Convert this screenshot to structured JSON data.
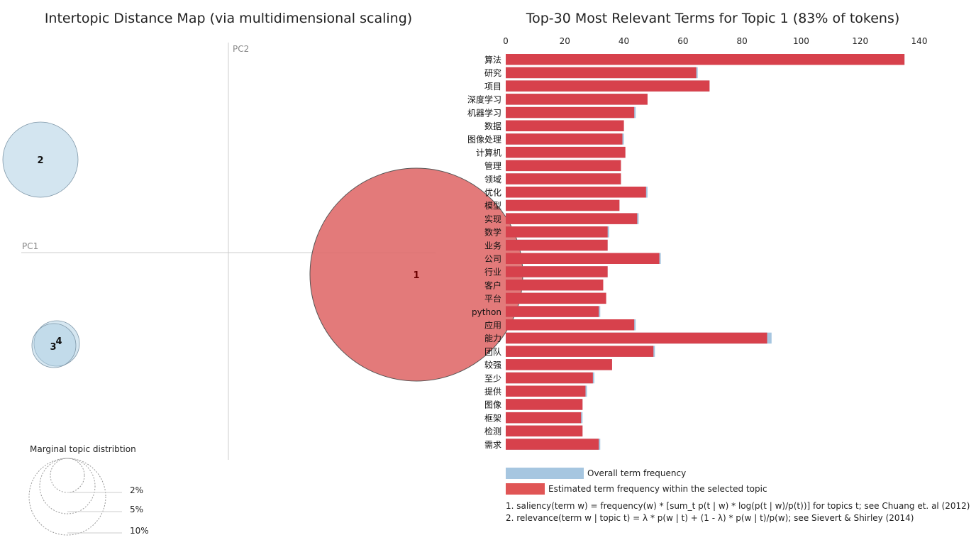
{
  "left_panel": {
    "title": "Intertopic Distance Map (via multidimensional scaling)",
    "pc1_label": "PC1",
    "pc2_label": "PC2",
    "marginal_title": "Marginal topic distribtion",
    "marginal_labels": [
      "2%",
      "5%",
      "10%"
    ]
  },
  "right_panel": {
    "title": "Top-30 Most Relevant Terms for Topic 1 (83% of tokens)",
    "legend": {
      "overall": "Overall term frequency",
      "estimated": "Estimated term frequency within the selected topic"
    },
    "footnotes": [
      "1. saliency(term w) = frequency(w) * [sum_t p(t | w) * log(p(t | w)/p(t))] for topics t; see Chuang et. al (2012)",
      "2. relevance(term w | topic t) = λ * p(w | t) + (1 - λ) * p(w | t)/p(w); see Sievert & Shirley (2014)"
    ]
  },
  "colors": {
    "topic_selected": "#e06b6b",
    "topic_other": "#aecfe4",
    "overall_bar": "#a6c6e0",
    "estimated_bar": "#d7414c",
    "legend_estimated": "#e05555"
  },
  "chart_data": [
    {
      "type": "scatter",
      "title": "Intertopic Distance Map (via multidimensional scaling)",
      "xlabel": "PC1",
      "ylabel": "PC2",
      "points": [
        {
          "label": "1",
          "selected": true
        },
        {
          "label": "2",
          "selected": false
        },
        {
          "label": "3",
          "selected": false
        },
        {
          "label": "4",
          "selected": false
        }
      ]
    },
    {
      "type": "bar",
      "orientation": "horizontal",
      "title": "Top-30 Most Relevant Terms for Topic 1 (83% of tokens)",
      "xlim": [
        0,
        140
      ],
      "xticks": [
        0,
        20,
        40,
        60,
        80,
        100,
        120,
        140
      ],
      "categories": [
        "算法",
        "研究",
        "项目",
        "深度学习",
        "机器学习",
        "数据",
        "图像处理",
        "计算机",
        "管理",
        "领域",
        "优化",
        "模型",
        "实现",
        "数学",
        "业务",
        "公司",
        "行业",
        "客户",
        "平台",
        "python",
        "应用",
        "能力",
        "团队",
        "较强",
        "至少",
        "提供",
        "图像",
        "框架",
        "检测",
        "需求"
      ],
      "series": [
        {
          "name": "Overall term frequency",
          "values": [
            135,
            65,
            69,
            48,
            44,
            40,
            40,
            40.5,
            39,
            39,
            48,
            38.5,
            45,
            35,
            34.5,
            52.5,
            34.5,
            33,
            34,
            32,
            44,
            90,
            50.5,
            36,
            30,
            27.5,
            26,
            26,
            26,
            32
          ]
        },
        {
          "name": "Estimated term frequency within the selected topic",
          "values": [
            135,
            64.5,
            69,
            48,
            43.5,
            40,
            39.5,
            40.5,
            39,
            39,
            47.5,
            38.5,
            44.5,
            34.5,
            34.5,
            52,
            34.5,
            33,
            34,
            31.5,
            43.5,
            88.5,
            50,
            36,
            29.5,
            27,
            26,
            25.5,
            26,
            31.5
          ]
        }
      ]
    }
  ]
}
